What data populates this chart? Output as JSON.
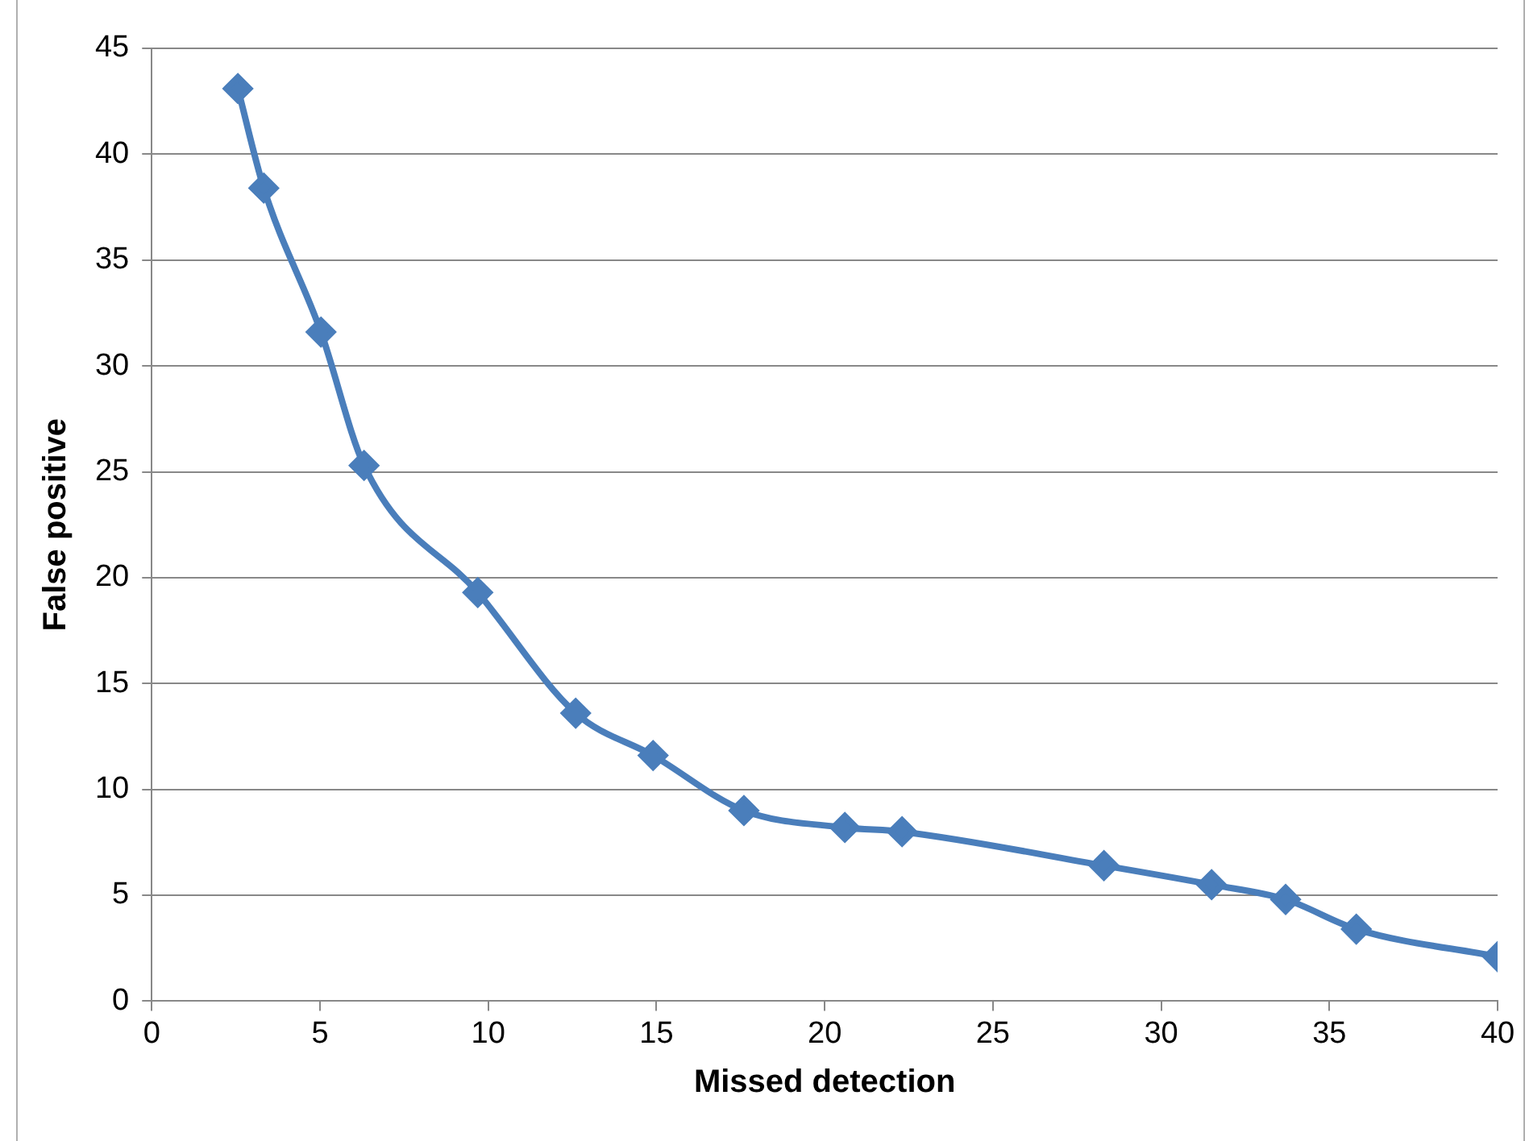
{
  "chart_data": {
    "type": "line",
    "xlabel": "Missed detection",
    "ylabel": "False positive",
    "x": [
      2.56,
      3.33,
      5.03,
      6.31,
      9.69,
      12.6,
      14.9,
      17.6,
      20.6,
      22.3,
      28.3,
      31.5,
      33.7,
      35.8,
      40
    ],
    "series": [
      {
        "color": "#4a7ebb",
        "values": [
          43.1,
          38.4,
          31.6,
          25.3,
          19.3,
          13.6,
          11.6,
          9.0,
          8.2,
          8.0,
          6.4,
          5.5,
          4.8,
          3.4,
          2.1
        ]
      }
    ],
    "xlim": [
      0,
      40
    ],
    "xticks": [
      0,
      5,
      10,
      15,
      20,
      25,
      30,
      35,
      40
    ],
    "ylim": [
      0,
      45
    ],
    "yticks": [
      0,
      5,
      10,
      15,
      20,
      25,
      30,
      35,
      40,
      45
    ],
    "grid": "y",
    "legend": false,
    "marker": "diamond",
    "line_style": "solid"
  }
}
